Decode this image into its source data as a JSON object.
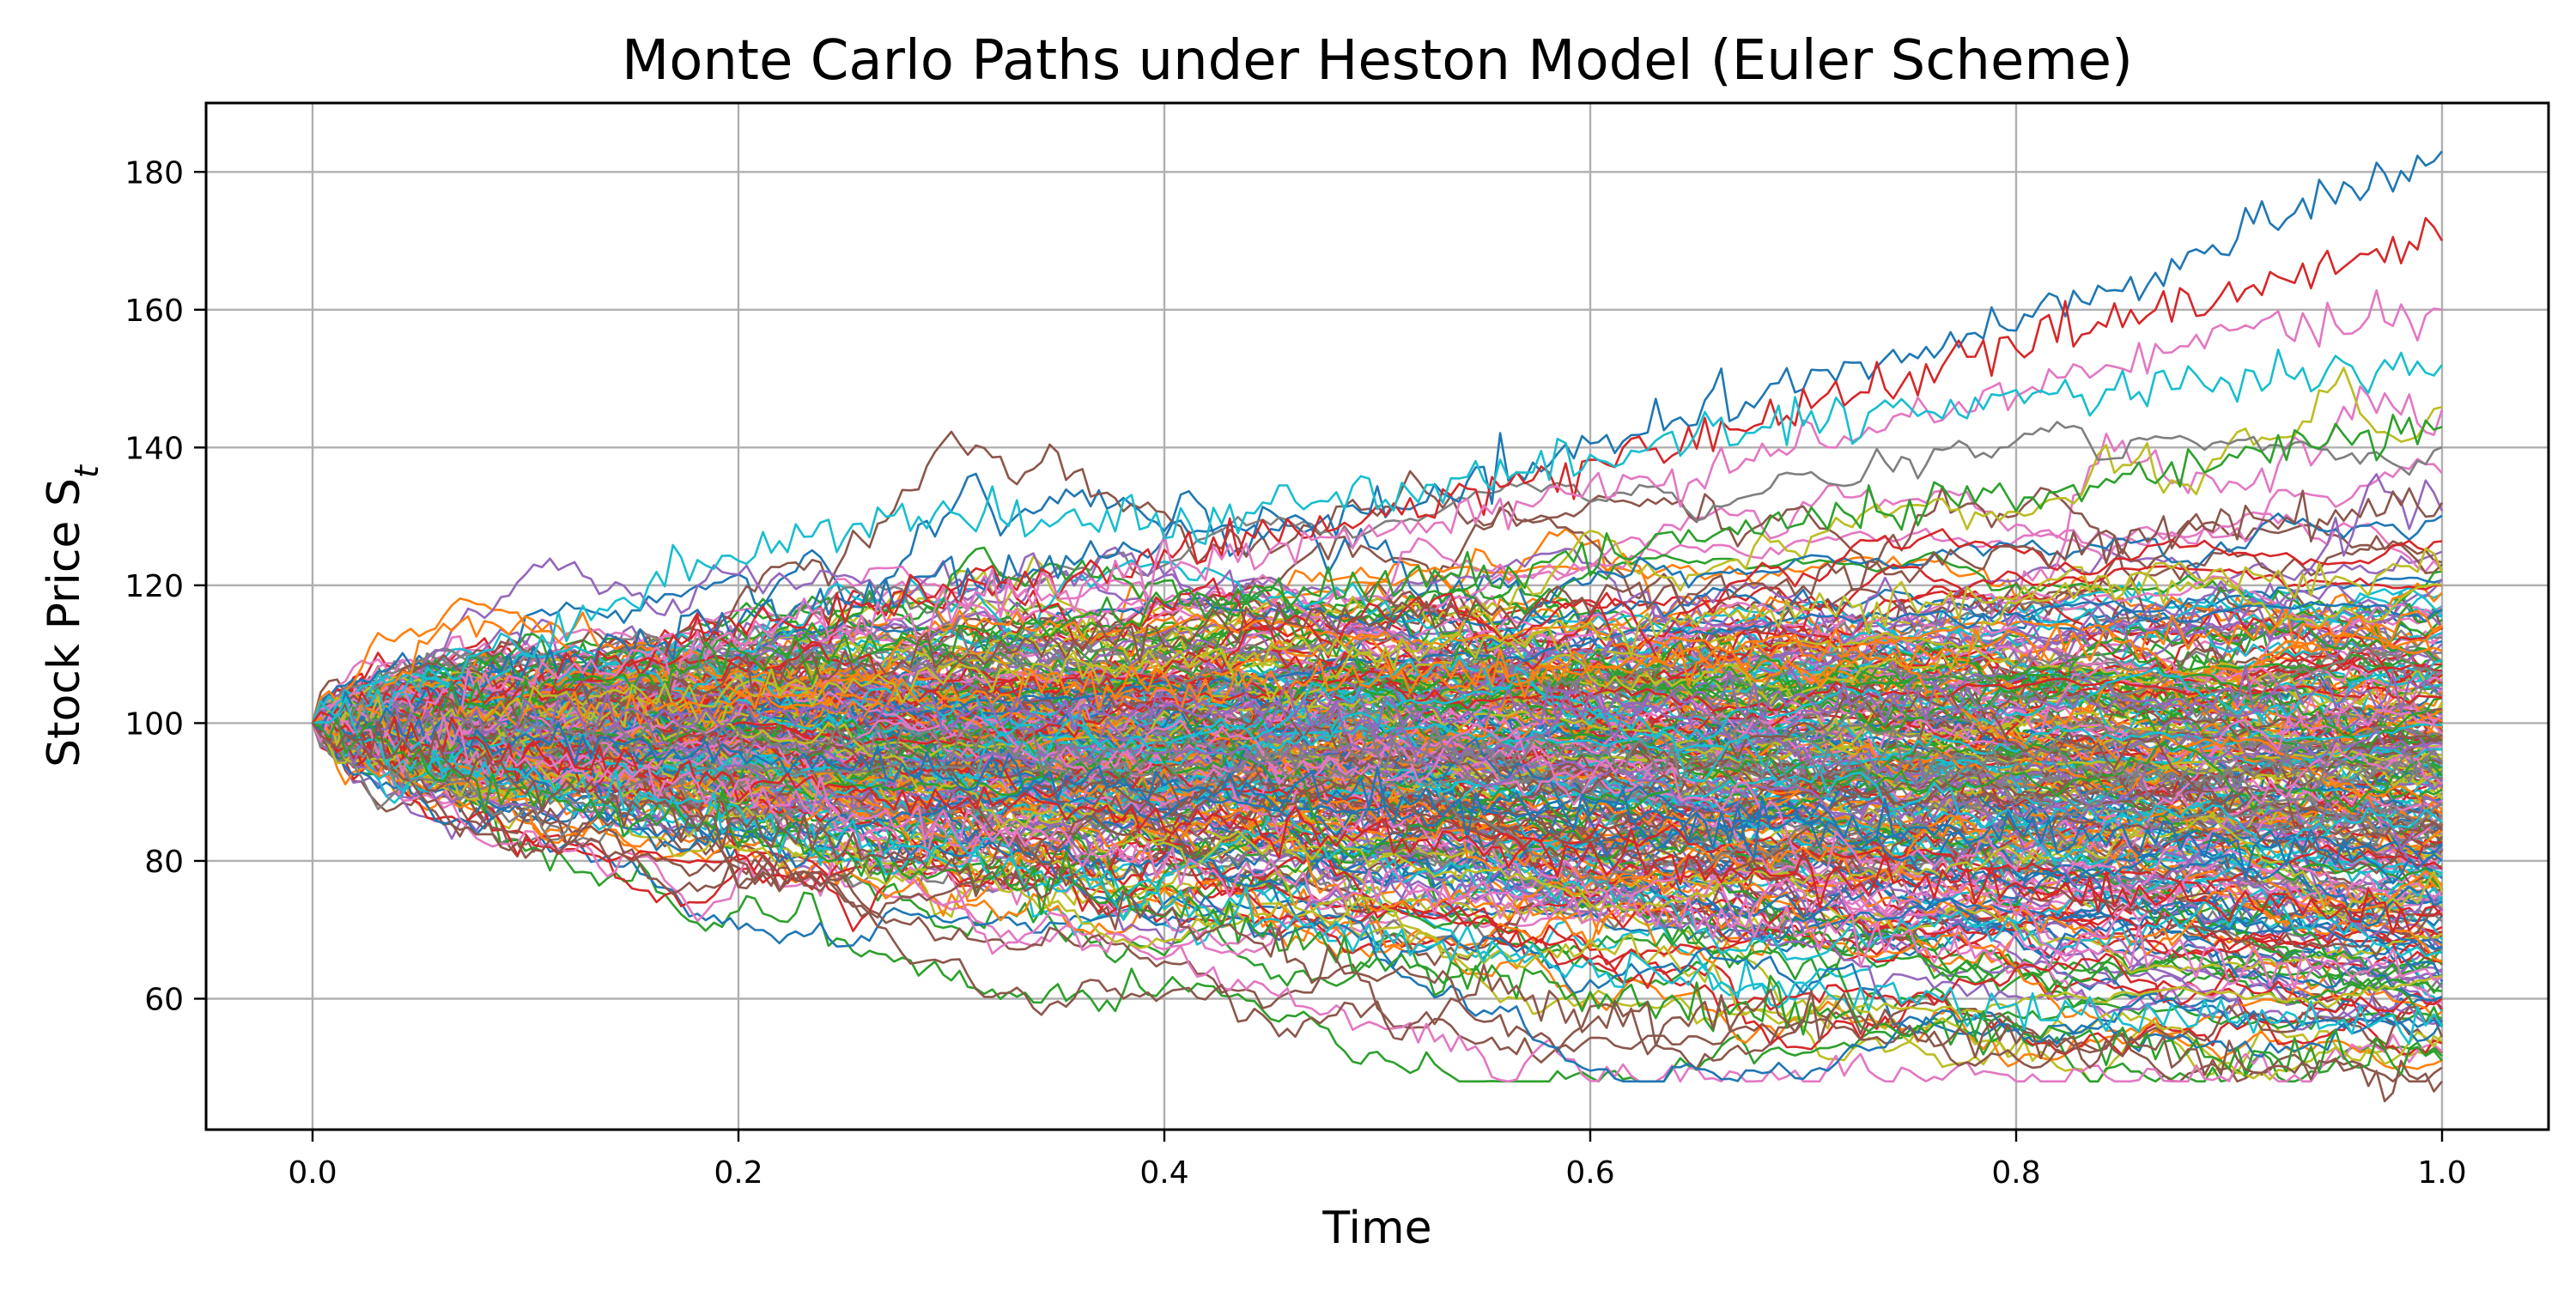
{
  "chart_data": {
    "type": "line",
    "title": "Monte Carlo Paths under Heston Model (Euler Scheme)",
    "xlabel": "Time",
    "ylabel": "Stock Price S",
    "ylabel_subscript": "t",
    "xlim": [
      -0.05,
      1.05
    ],
    "ylim": [
      41,
      190
    ],
    "xticks": [
      0.0,
      0.2,
      0.4,
      0.6,
      0.8,
      1.0
    ],
    "xtick_labels": [
      "0.0",
      "0.2",
      "0.4",
      "0.6",
      "0.8",
      "1.0"
    ],
    "yticks": [
      60,
      80,
      100,
      120,
      140,
      160,
      180
    ],
    "ytick_labels": [
      "60",
      "80",
      "100",
      "120",
      "140",
      "160",
      "180"
    ],
    "grid": true,
    "legend": "none",
    "initial_price": 100,
    "time_range": [
      0,
      1
    ],
    "terminal_price_range_approx": [
      48,
      183
    ],
    "colors": [
      "#1f77b4",
      "#ff7f0e",
      "#2ca02c",
      "#d62728",
      "#9467bd",
      "#8c564b",
      "#e377c2",
      "#7f7f7f",
      "#bcbd22",
      "#17becf"
    ],
    "series": [
      {
        "x": [
          0.0,
          0.1,
          0.2,
          0.3,
          0.4,
          0.5,
          0.6,
          0.7,
          0.8,
          0.9,
          1.0
        ],
        "values": [
          100,
          108,
          115,
          121,
          126,
          131,
          140,
          150,
          158,
          170,
          183
        ]
      },
      {
        "x": [
          0.0,
          0.1,
          0.2,
          0.3,
          0.4,
          0.5,
          0.6,
          0.7,
          0.8,
          0.9,
          1.0
        ],
        "values": [
          100,
          106,
          113,
          119,
          124,
          130,
          137,
          146,
          155,
          163,
          170
        ]
      },
      {
        "x": [
          0.0,
          0.1,
          0.2,
          0.3,
          0.4,
          0.5,
          0.6,
          0.7,
          0.8,
          0.9,
          1.0
        ],
        "values": [
          100,
          107,
          112,
          116,
          123,
          128,
          134,
          140,
          149,
          156,
          160
        ]
      },
      {
        "x": [
          0.0,
          0.1,
          0.2,
          0.3,
          0.4,
          0.5,
          0.6,
          0.7,
          0.8,
          0.9,
          1.0
        ],
        "values": [
          100,
          112,
          125,
          131,
          129,
          133,
          138,
          144,
          147,
          150,
          152
        ]
      },
      {
        "x": [
          0.0,
          0.1,
          0.2,
          0.3,
          0.4,
          0.5,
          0.6,
          0.7,
          0.8,
          0.9,
          1.0
        ],
        "values": [
          100,
          104,
          109,
          112,
          117,
          120,
          124,
          129,
          133,
          138,
          143
        ]
      },
      {
        "x": [
          0.0,
          0.1,
          0.2,
          0.3,
          0.4,
          0.5,
          0.6,
          0.7,
          0.8,
          0.9,
          1.0
        ],
        "values": [
          100,
          103,
          106,
          110,
          113,
          116,
          118,
          121,
          125,
          129,
          132
        ]
      },
      {
        "x": [
          0.0,
          0.1,
          0.2,
          0.3,
          0.4,
          0.5,
          0.6,
          0.7,
          0.8,
          0.9,
          1.0
        ],
        "values": [
          100,
          102,
          104,
          107,
          109,
          111,
          113,
          116,
          118,
          120,
          122
        ]
      },
      {
        "x": [
          0.0,
          0.1,
          0.2,
          0.3,
          0.4,
          0.5,
          0.6,
          0.7,
          0.8,
          0.9,
          1.0
        ],
        "values": [
          100,
          101,
          103,
          104,
          106,
          107,
          108,
          110,
          111,
          113,
          114
        ]
      },
      {
        "x": [
          0.0,
          0.1,
          0.2,
          0.3,
          0.4,
          0.5,
          0.6,
          0.7,
          0.8,
          0.9,
          1.0
        ],
        "values": [
          100,
          100,
          101,
          101,
          102,
          101,
          102,
          103,
          102,
          104,
          105
        ]
      },
      {
        "x": [
          0.0,
          0.1,
          0.2,
          0.3,
          0.4,
          0.5,
          0.6,
          0.7,
          0.8,
          0.9,
          1.0
        ],
        "values": [
          100,
          99,
          98,
          97,
          96,
          96,
          95,
          94,
          94,
          93,
          92
        ]
      },
      {
        "x": [
          0.0,
          0.1,
          0.2,
          0.3,
          0.4,
          0.5,
          0.6,
          0.7,
          0.8,
          0.9,
          1.0
        ],
        "values": [
          100,
          97,
          95,
          93,
          91,
          89,
          87,
          85,
          84,
          82,
          80
        ]
      },
      {
        "x": [
          0.0,
          0.1,
          0.2,
          0.3,
          0.4,
          0.5,
          0.6,
          0.7,
          0.8,
          0.9,
          1.0
        ],
        "values": [
          100,
          95,
          92,
          89,
          86,
          84,
          81,
          78,
          76,
          74,
          72
        ]
      },
      {
        "x": [
          0.0,
          0.1,
          0.2,
          0.3,
          0.4,
          0.5,
          0.6,
          0.7,
          0.8,
          0.9,
          1.0
        ],
        "values": [
          100,
          94,
          90,
          85,
          80,
          76,
          73,
          70,
          67,
          65,
          63
        ]
      },
      {
        "x": [
          0.0,
          0.1,
          0.2,
          0.3,
          0.4,
          0.5,
          0.6,
          0.7,
          0.8,
          0.9,
          1.0
        ],
        "values": [
          100,
          92,
          86,
          80,
          74,
          69,
          65,
          61,
          59,
          57,
          56
        ]
      },
      {
        "x": [
          0.0,
          0.1,
          0.2,
          0.3,
          0.4,
          0.5,
          0.6,
          0.7,
          0.8,
          0.9,
          1.0
        ],
        "values": [
          100,
          90,
          84,
          78,
          73,
          66,
          60,
          58,
          55,
          52,
          51
        ]
      },
      {
        "x": [
          0.0,
          0.1,
          0.2,
          0.3,
          0.4,
          0.5,
          0.6,
          0.7,
          0.8,
          0.9,
          1.0
        ],
        "values": [
          100,
          91,
          85,
          79,
          72,
          64,
          58,
          57,
          54,
          51,
          48
        ]
      }
    ]
  }
}
